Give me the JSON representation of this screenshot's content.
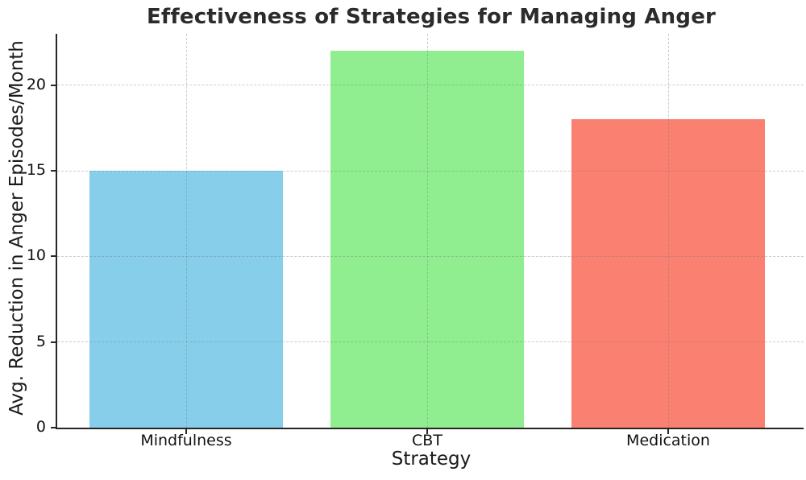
{
  "figure": {
    "background": "#ffffff"
  },
  "chart_data": {
    "type": "bar",
    "title": "Effectiveness of Strategies for Managing Anger",
    "xlabel": "Strategy",
    "ylabel": "Avg. Reduction in Anger Episodes/Month",
    "categories": [
      "Mindfulness",
      "CBT",
      "Medication"
    ],
    "values": [
      15,
      22,
      18
    ],
    "bar_colors": [
      "#87CEEB",
      "#90EE90",
      "#FA8072"
    ],
    "yticks": [
      0,
      5,
      10,
      15,
      20
    ],
    "ylim": [
      0,
      23
    ],
    "grid": true,
    "grid_line_style": "dashed",
    "grid_over_bars": true,
    "legend_position": "none",
    "styles": {
      "title_color": "#2b2b2b",
      "axis_spine_color": "#262626",
      "tick_label_color": "#111111",
      "grid_color": "#c9c9c9"
    }
  }
}
